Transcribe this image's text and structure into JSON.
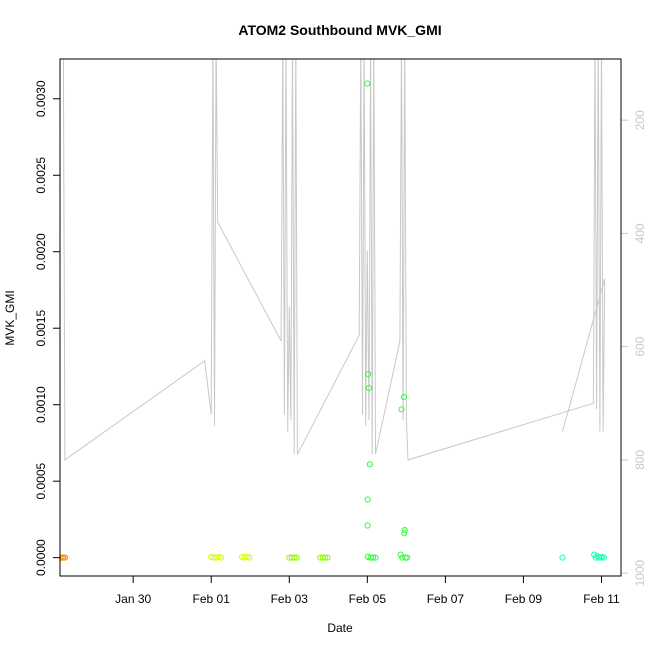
{
  "chart_data": {
    "type": "scatter",
    "title": "ATOM2 Southbound MVK_GMI",
    "xlabel": "Date",
    "ylabel": "MVK_GMI",
    "xlim": [
      "2019-01-28T03:00",
      "2019-02-11T12:00"
    ],
    "ylim": [
      -0.00012,
      0.00326
    ],
    "x_ticks": [
      {
        "date": "2019-01-30T00:00",
        "label": "Jan 30"
      },
      {
        "date": "2019-02-01T00:00",
        "label": "Feb 01"
      },
      {
        "date": "2019-02-03T00:00",
        "label": "Feb 03"
      },
      {
        "date": "2019-02-05T00:00",
        "label": "Feb 05"
      },
      {
        "date": "2019-02-07T00:00",
        "label": "Feb 07"
      },
      {
        "date": "2019-02-09T00:00",
        "label": "Feb 09"
      },
      {
        "date": "2019-02-11T00:00",
        "label": "Feb 11"
      }
    ],
    "y_ticks": [
      {
        "value": 0,
        "label": "0.0000"
      },
      {
        "value": 0.0005,
        "label": "0.0005"
      },
      {
        "value": 0.001,
        "label": "0.0010"
      },
      {
        "value": 0.0015,
        "label": "0.0015"
      },
      {
        "value": 0.002,
        "label": "0.0020"
      },
      {
        "value": 0.0025,
        "label": "0.0025"
      },
      {
        "value": 0.003,
        "label": "0.0030"
      }
    ],
    "y2_reversed": true,
    "y2lim": [
      92,
      1005
    ],
    "y2_ticks": [
      {
        "value": 200,
        "label": "200"
      },
      {
        "value": 400,
        "label": "400"
      },
      {
        "value": 600,
        "label": "600"
      },
      {
        "value": 800,
        "label": "800"
      },
      {
        "value": 1000,
        "label": "1000"
      }
    ],
    "grid": false,
    "legend": "none",
    "axis_color": "#000000",
    "secondary_color": "#c8c8c8",
    "series": [
      {
        "color": "#ff8c00",
        "points": [
          [
            "2019-01-28T04:00",
            0
          ],
          [
            "2019-01-28T05:00",
            0
          ],
          [
            "2019-01-28T06:00",
            0
          ]
        ]
      },
      {
        "color": "#d4ff00",
        "points": [
          [
            "2019-02-01T00:00",
            5e-06
          ],
          [
            "2019-02-01T01:30",
            0
          ],
          [
            "2019-02-01T03:00",
            0
          ],
          [
            "2019-02-01T04:30",
            5e-06
          ],
          [
            "2019-02-01T06:00",
            0
          ],
          [
            "2019-02-01T19:00",
            5e-06
          ],
          [
            "2019-02-01T20:30",
            0
          ],
          [
            "2019-02-01T22:00",
            5e-06
          ],
          [
            "2019-02-01T23:30",
            0
          ]
        ]
      },
      {
        "color": "#8cff00",
        "points": [
          [
            "2019-02-03T00:00",
            0
          ],
          [
            "2019-02-03T01:30",
            0
          ],
          [
            "2019-02-03T03:00",
            0
          ],
          [
            "2019-02-03T04:30",
            0
          ],
          [
            "2019-02-03T19:00",
            0
          ],
          [
            "2019-02-03T20:30",
            0
          ],
          [
            "2019-02-03T22:00",
            0
          ],
          [
            "2019-02-03T23:30",
            0
          ]
        ]
      },
      {
        "color": "#2cff3a",
        "points": [
          [
            "2019-02-05T00:00",
            0.0031
          ],
          [
            "2019-02-05T00:30",
            0.0012
          ],
          [
            "2019-02-05T01:00",
            0.00111
          ],
          [
            "2019-02-05T01:30",
            0.00061
          ],
          [
            "2019-02-05T00:15",
            0.00038
          ],
          [
            "2019-02-05T00:10",
            0.00021
          ],
          [
            "2019-02-05T00:20",
            5e-06
          ],
          [
            "2019-02-05T02:00",
            0
          ],
          [
            "2019-02-05T03:30",
            0
          ],
          [
            "2019-02-05T05:00",
            0
          ],
          [
            "2019-02-05T21:00",
            0.00097
          ],
          [
            "2019-02-05T22:30",
            0.00105
          ],
          [
            "2019-02-05T23:00",
            0.00018
          ],
          [
            "2019-02-05T22:45",
            0.00016
          ],
          [
            "2019-02-05T20:30",
            2e-05
          ],
          [
            "2019-02-05T21:30",
            0
          ],
          [
            "2019-02-05T23:30",
            0
          ],
          [
            "2019-02-06T00:30",
            0
          ]
        ]
      },
      {
        "color": "#22ffb0",
        "points": [
          [
            "2019-02-10T00:00",
            0
          ],
          [
            "2019-02-10T19:30",
            2e-05
          ],
          [
            "2019-02-10T20:30",
            0
          ],
          [
            "2019-02-10T21:30",
            1e-05
          ],
          [
            "2019-02-10T22:30",
            0
          ],
          [
            "2019-02-10T23:30",
            0
          ],
          [
            "2019-02-11T00:30",
            5e-06
          ],
          [
            "2019-02-11T01:30",
            0
          ]
        ]
      }
    ],
    "secondary_line": {
      "color": "#c8c8c8",
      "points": [
        [
          "2019-01-28T05:00",
          50
        ],
        [
          "2019-01-28T06:00",
          800
        ],
        [
          "2019-01-31T20:00",
          625
        ],
        [
          "2019-02-01T00:00",
          720
        ],
        [
          "2019-02-01T01:00",
          50
        ],
        [
          "2019-02-01T02:00",
          740
        ],
        [
          "2019-02-01T03:00",
          50
        ],
        [
          "2019-02-01T04:00",
          380
        ],
        [
          "2019-02-02T19:00",
          590
        ],
        [
          "2019-02-02T20:00",
          50
        ],
        [
          "2019-02-02T21:00",
          720
        ],
        [
          "2019-02-02T22:00",
          50
        ],
        [
          "2019-02-02T23:00",
          750
        ],
        [
          "2019-02-03T00:00",
          530
        ],
        [
          "2019-02-03T01:00",
          730
        ],
        [
          "2019-02-03T02:00",
          50
        ],
        [
          "2019-02-03T03:00",
          790
        ],
        [
          "2019-02-03T04:00",
          50
        ],
        [
          "2019-02-03T05:00",
          790
        ],
        [
          "2019-02-04T19:00",
          580
        ],
        [
          "2019-02-04T20:00",
          50
        ],
        [
          "2019-02-04T21:00",
          720
        ],
        [
          "2019-02-04T22:00",
          50
        ],
        [
          "2019-02-04T23:00",
          740
        ],
        [
          "2019-02-05T00:00",
          430
        ],
        [
          "2019-02-05T01:00",
          730
        ],
        [
          "2019-02-05T02:00",
          50
        ],
        [
          "2019-02-05T03:00",
          790
        ],
        [
          "2019-02-05T04:00",
          50
        ],
        [
          "2019-02-05T05:00",
          790
        ],
        [
          "2019-02-05T20:00",
          590
        ],
        [
          "2019-02-05T21:00",
          50
        ],
        [
          "2019-02-05T22:00",
          730
        ],
        [
          "2019-02-05T23:00",
          50
        ],
        [
          "2019-02-06T00:00",
          730
        ],
        [
          "2019-02-06T01:00",
          800
        ],
        [
          "2019-02-10T19:00",
          700
        ],
        [
          "2019-02-10T20:00",
          50
        ],
        [
          "2019-02-10T21:00",
          710
        ],
        [
          "2019-02-10T22:00",
          50
        ],
        [
          "2019-02-10T23:00",
          750
        ],
        [
          "2019-02-11T00:00",
          50
        ],
        [
          "2019-02-11T01:00",
          750
        ],
        [
          "2019-02-11T02:00",
          480
        ],
        [
          "2019-02-10T00:00",
          750
        ]
      ]
    }
  }
}
